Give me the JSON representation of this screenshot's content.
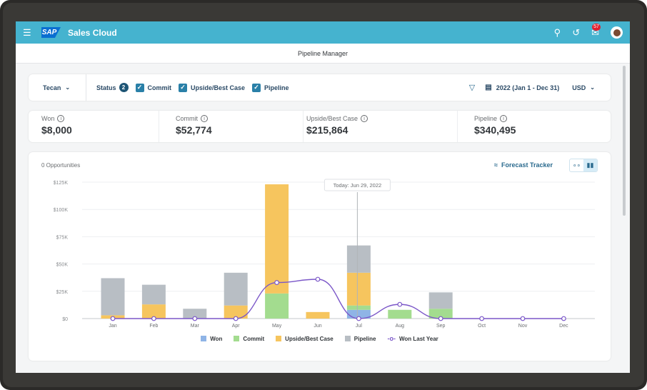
{
  "shell": {
    "brand_logo": "SAP",
    "app_name": "Sales Cloud",
    "notifications_count": "57",
    "accent_color": "#45b3cf"
  },
  "page": {
    "title": "Pipeline Manager"
  },
  "filters": {
    "account": "Tecan",
    "status_label": "Status",
    "status_count": "2",
    "checks": [
      "Commit",
      "Upside/Best Case",
      "Pipeline"
    ],
    "date_range": "2022 (Jan 1 - Dec 31)",
    "currency": "USD"
  },
  "kpis": [
    {
      "label": "Won",
      "value": "$8,000"
    },
    {
      "label": "Commit",
      "value": "$52,774"
    },
    {
      "label": "Upside/Best Case",
      "value": "$215,864"
    },
    {
      "label": "Pipeline",
      "value": "$340,495"
    }
  ],
  "chart_header": {
    "opportunities": "0 Opportunities",
    "forecast_tracker": "Forecast Tracker"
  },
  "chart_data": {
    "type": "bar",
    "stacked": true,
    "categories": [
      "Jan",
      "Feb",
      "Mar",
      "Apr",
      "May",
      "Jun",
      "Jul",
      "Aug",
      "Sep",
      "Oct",
      "Nov",
      "Dec"
    ],
    "ylim": [
      0,
      125000
    ],
    "yticks": [
      "$0",
      "$25K",
      "$50K",
      "$75K",
      "$100K",
      "$125K"
    ],
    "ytick_values": [
      0,
      25000,
      50000,
      75000,
      100000,
      125000
    ],
    "series": [
      {
        "name": "Won",
        "color": "#8fb4e6",
        "values": [
          0,
          0,
          0,
          0,
          0,
          0,
          8000,
          0,
          0,
          0,
          0,
          0
        ]
      },
      {
        "name": "Commit",
        "color": "#a3dc8f",
        "values": [
          0,
          0,
          0,
          0,
          23000,
          0,
          4000,
          8000,
          9000,
          0,
          0,
          0
        ]
      },
      {
        "name": "Upside/Best Case",
        "color": "#f6c55e",
        "values": [
          3000,
          13000,
          0,
          12000,
          100000,
          6000,
          30000,
          0,
          0,
          0,
          0,
          0
        ]
      },
      {
        "name": "Pipeline",
        "color": "#b8bec4",
        "values": [
          34000,
          18000,
          9000,
          30000,
          0,
          0,
          25000,
          0,
          15000,
          0,
          0,
          0
        ]
      }
    ],
    "line": {
      "name": "Won Last Year",
      "color": "#7b57c8",
      "values": [
        0,
        0,
        0,
        0,
        33000,
        36000,
        0,
        13000,
        0,
        0,
        0,
        0
      ]
    },
    "annotation": {
      "label": "Today: Jun 29, 2022",
      "x": "Jul"
    },
    "legend_position": "bottom",
    "grid": true
  }
}
